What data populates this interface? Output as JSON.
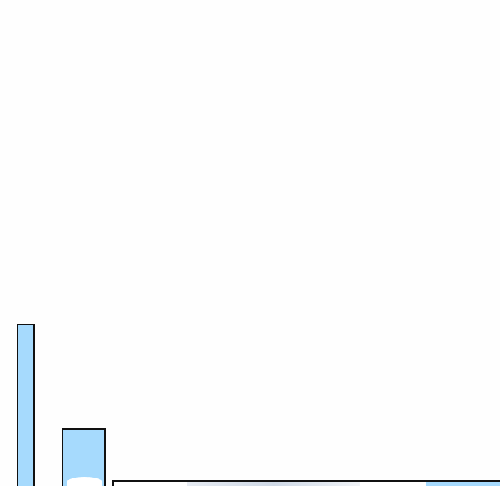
{
  "colors": {
    "background": "#fefefe",
    "panel_fill": "#a6dafd",
    "panel_border": "#111111"
  }
}
